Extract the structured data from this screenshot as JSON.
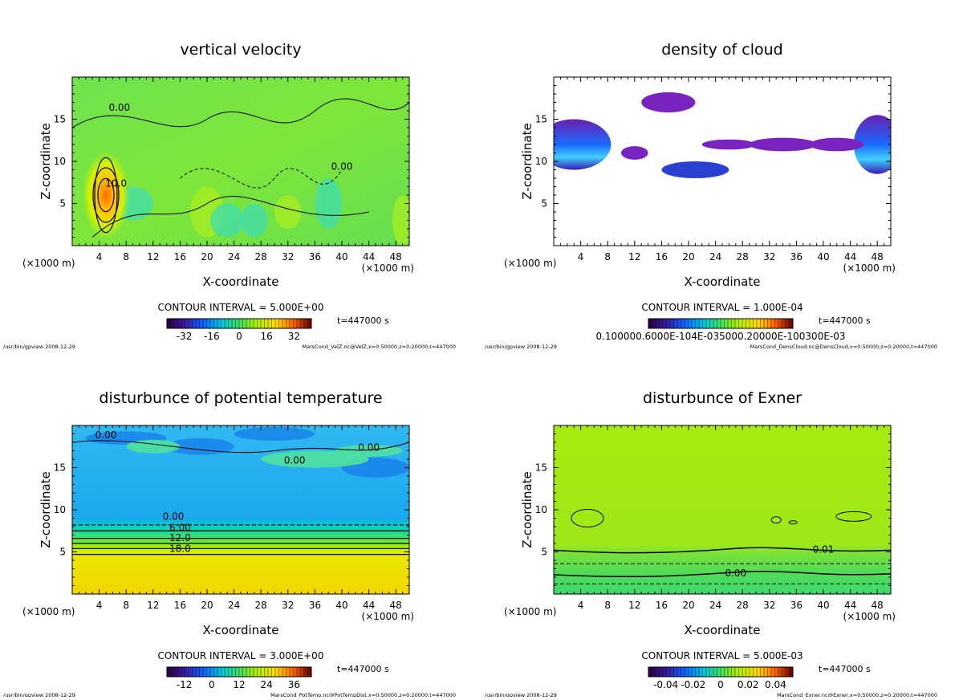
{
  "common": {
    "ylabel": "Z-coordinate",
    "xlabel": "X-coordinate",
    "xunit": "(×1000 m)",
    "xticks": [
      4,
      8,
      12,
      16,
      20,
      24,
      28,
      32,
      36,
      40,
      44,
      48
    ],
    "yticks": [
      5,
      10,
      15
    ],
    "time": "t=447000 s",
    "footer_left": "/usr/bin/gpview  2008-12-29"
  },
  "chart_data": [
    {
      "type": "heatmap",
      "id": "vel",
      "title": "vertical velocity",
      "xlabel": "X-coordinate",
      "ylabel": "Z-coordinate",
      "xlim": [
        0,
        50
      ],
      "ylim": [
        0,
        20
      ],
      "contour_interval": "CONTOUR INTERVAL = 5.000E+00",
      "colorbar_ticks": [
        "-32",
        "-16",
        "0",
        "16",
        "32"
      ],
      "contour_labels": [
        "10.0",
        "0.00",
        "0.00"
      ],
      "footer_right": "MarsCond_VelZ.nc@VelZ,x=0:50000,z=0:20000,t=447000"
    },
    {
      "type": "heatmap",
      "id": "cloud",
      "title": "density of cloud",
      "xlabel": "X-coordinate",
      "ylabel": "Z-coordinate",
      "xlim": [
        0,
        50
      ],
      "ylim": [
        0,
        20
      ],
      "contour_interval": "CONTOUR INTERVAL = 1.000E-04",
      "colorbar_ticks": [
        "0.100000.6000E-104E-035000.20000E-100300E-03"
      ],
      "contour_labels": [],
      "footer_right": "MarsCond_DensCloud.nc@DensCloud,x=0:50000,z=0:20000,t=447000"
    },
    {
      "type": "heatmap",
      "id": "temp",
      "title": "disturbunce of potential temperature",
      "xlabel": "X-coordinate",
      "ylabel": "Z-coordinate",
      "xlim": [
        0,
        50
      ],
      "ylim": [
        0,
        20
      ],
      "contour_interval": "CONTOUR INTERVAL = 3.000E+00",
      "colorbar_ticks": [
        "-12",
        "0",
        "12",
        "24",
        "36"
      ],
      "contour_labels": [
        "0.00",
        "0.00",
        "0.00",
        "0.00",
        "6.00",
        "12.0",
        "18.0"
      ],
      "footer_right": "MarsCond_PotTemp.nc@PotTempDist,x=0:50000,z=0:20000,t=447000"
    },
    {
      "type": "heatmap",
      "id": "exner",
      "title": "disturbunce of Exner",
      "xlabel": "X-coordinate",
      "ylabel": "Z-coordinate",
      "xlim": [
        0,
        50
      ],
      "ylim": [
        0,
        20
      ],
      "contour_interval": "CONTOUR INTERVAL = 5.000E-03",
      "colorbar_ticks": [
        "-0.04",
        "-0.02",
        "0",
        "0.02",
        "0.04"
      ],
      "contour_labels": [
        "0.01",
        "0.00"
      ],
      "footer_right": "MarsCond_Exner.nc@Exner,x=0:50000,z=0:20000,t=447000"
    }
  ]
}
